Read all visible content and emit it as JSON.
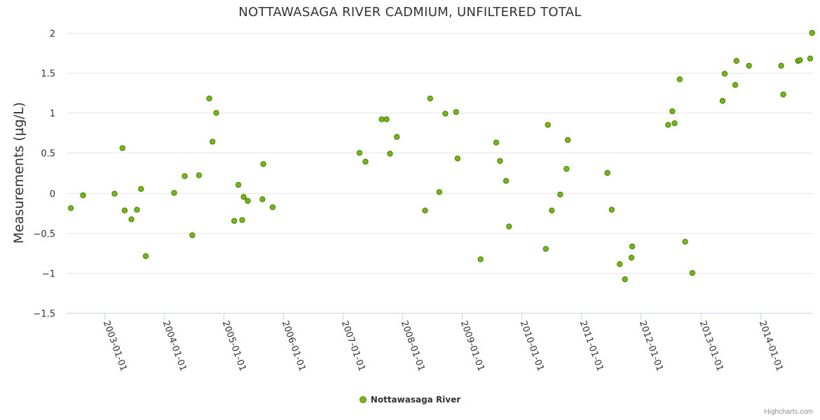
{
  "chart_data": {
    "type": "scatter",
    "title": "NOTTAWASAGA RIVER CADMIUM, UNFILTERED TOTAL",
    "ylabel": "Measurements (µg/L)",
    "xlabel": "",
    "x_axis_type": "datetime",
    "xlim": [
      "2002-05-15",
      "2014-11-20"
    ],
    "ylim": [
      -1.5,
      2
    ],
    "y_ticks": [
      -1.5,
      -1,
      -0.5,
      0,
      0.5,
      1,
      1.5,
      2
    ],
    "y_tick_labels": [
      "−1.5",
      "−1",
      "−0.5",
      "0",
      "0.5",
      "1",
      "1.5",
      "2"
    ],
    "x_ticks": [
      "2003-01-01",
      "2004-01-01",
      "2005-01-01",
      "2006-01-01",
      "2007-01-01",
      "2008-01-01",
      "2009-01-01",
      "2010-01-01",
      "2011-01-01",
      "2012-01-01",
      "2013-01-01",
      "2014-01-01"
    ],
    "grid": "horizontal",
    "legend_position": "bottom-center",
    "series": [
      {
        "name": "Nottawasaga River",
        "color": "#7cb319",
        "border_color": "#4b8a0e",
        "points": [
          [
            "2002-06-10",
            -0.19
          ],
          [
            "2002-08-24",
            -0.03
          ],
          [
            "2003-03-05",
            -0.01
          ],
          [
            "2003-04-22",
            0.56
          ],
          [
            "2003-05-06",
            -0.22
          ],
          [
            "2003-06-16",
            -0.33
          ],
          [
            "2003-07-20",
            -0.21
          ],
          [
            "2003-08-14",
            0.05
          ],
          [
            "2003-09-12",
            -0.79
          ],
          [
            "2004-03-04",
            0.0
          ],
          [
            "2004-05-08",
            0.21
          ],
          [
            "2004-06-23",
            -0.53
          ],
          [
            "2004-08-03",
            0.22
          ],
          [
            "2004-10-05",
            1.18
          ],
          [
            "2004-10-25",
            0.64
          ],
          [
            "2004-11-17",
            1.0
          ],
          [
            "2005-03-07",
            -0.35
          ],
          [
            "2005-04-01",
            0.1
          ],
          [
            "2005-04-25",
            -0.34
          ],
          [
            "2005-05-04",
            -0.05
          ],
          [
            "2005-05-29",
            -0.1
          ],
          [
            "2005-08-27",
            -0.08
          ],
          [
            "2005-09-01",
            0.36
          ],
          [
            "2005-10-28",
            -0.18
          ],
          [
            "2007-04-13",
            0.5
          ],
          [
            "2007-05-20",
            0.39
          ],
          [
            "2007-08-27",
            0.92
          ],
          [
            "2007-09-26",
            0.92
          ],
          [
            "2007-10-17",
            0.49
          ],
          [
            "2007-11-28",
            0.7
          ],
          [
            "2008-05-19",
            -0.22
          ],
          [
            "2008-06-19",
            1.18
          ],
          [
            "2008-08-14",
            0.01
          ],
          [
            "2008-09-20",
            0.99
          ],
          [
            "2008-11-25",
            1.01
          ],
          [
            "2008-12-04",
            0.43
          ],
          [
            "2009-04-24",
            -0.83
          ],
          [
            "2009-07-29",
            0.63
          ],
          [
            "2009-08-21",
            0.4
          ],
          [
            "2009-09-27",
            0.15
          ],
          [
            "2009-10-15",
            -0.42
          ],
          [
            "2010-05-28",
            -0.7
          ],
          [
            "2010-06-10",
            0.85
          ],
          [
            "2010-07-04",
            -0.22
          ],
          [
            "2010-08-25",
            -0.02
          ],
          [
            "2010-10-02",
            0.3
          ],
          [
            "2010-10-10",
            0.66
          ],
          [
            "2011-06-10",
            0.25
          ],
          [
            "2011-07-06",
            -0.21
          ],
          [
            "2011-08-24",
            -0.89
          ],
          [
            "2011-09-25",
            -1.08
          ],
          [
            "2011-11-04",
            -0.81
          ],
          [
            "2011-11-09",
            -0.67
          ],
          [
            "2012-06-16",
            0.85
          ],
          [
            "2012-07-12",
            1.02
          ],
          [
            "2012-07-25",
            0.87
          ],
          [
            "2012-08-26",
            1.42
          ],
          [
            "2012-09-28",
            -0.61
          ],
          [
            "2012-11-11",
            -1.0
          ],
          [
            "2013-05-15",
            1.15
          ],
          [
            "2013-05-28",
            1.49
          ],
          [
            "2013-08-01",
            1.35
          ],
          [
            "2013-08-08",
            1.65
          ],
          [
            "2013-10-24",
            1.59
          ],
          [
            "2014-05-09",
            1.59
          ],
          [
            "2014-05-22",
            1.23
          ],
          [
            "2014-08-20",
            1.65
          ],
          [
            "2014-09-01",
            1.66
          ],
          [
            "2014-11-03",
            1.68
          ],
          [
            "2014-11-15",
            2.0
          ]
        ]
      }
    ]
  },
  "credits": "Highcharts.com"
}
